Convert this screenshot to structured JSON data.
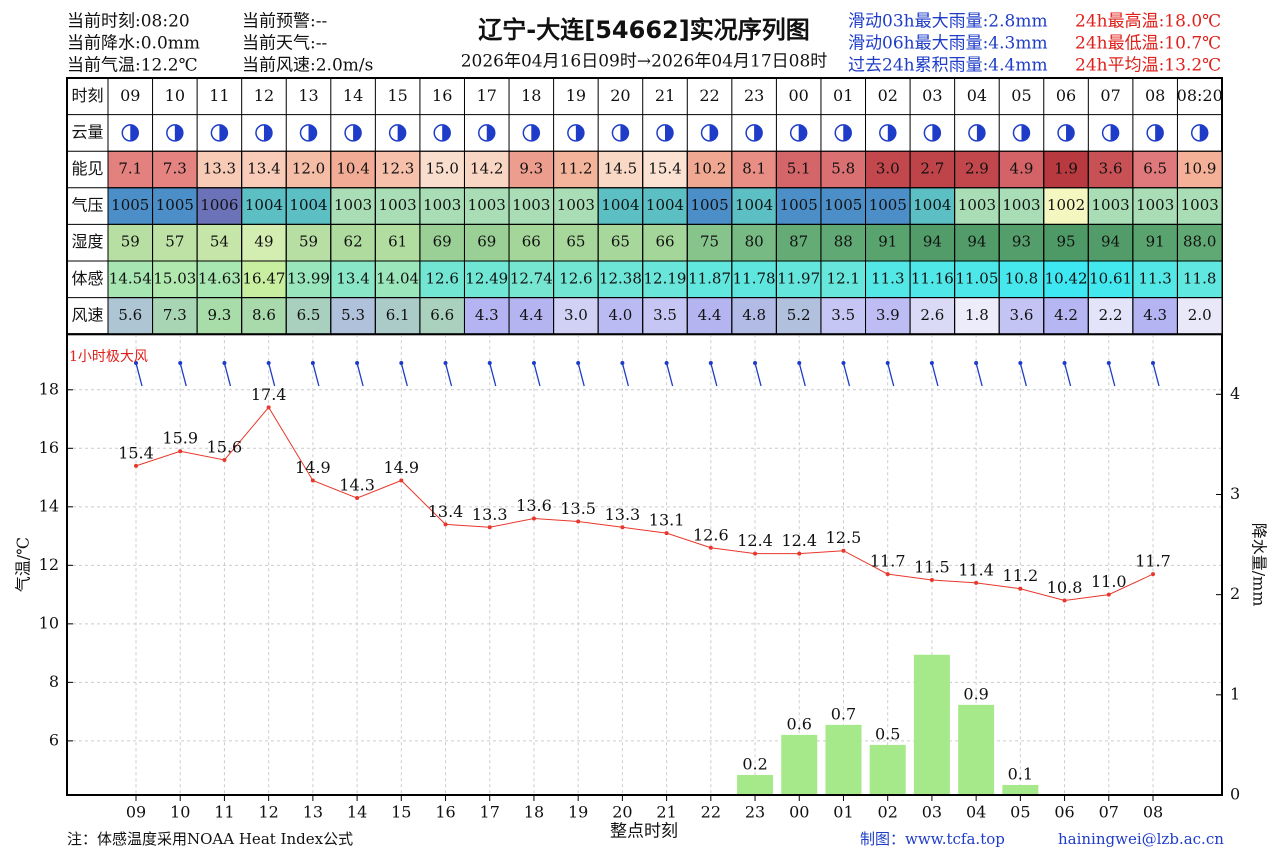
{
  "header": {
    "info_left": [
      "当前时刻:08:20",
      "当前降水:0.0mm",
      "当前气温:12.2℃"
    ],
    "info_mid": [
      "当前预警:--",
      "当前天气:--",
      "当前风速:2.0m/s"
    ],
    "title": "辽宁-大连[54662]实况序列图",
    "subtitle": "2026年04月16日09时→2026年04月17日08时",
    "rain_stats": [
      "滑动03h最大雨量:2.8mm",
      "滑动06h最大雨量:4.3mm",
      "过去24h累积雨量:4.4mm"
    ],
    "temp_stats": [
      "24h最高温:18.0℃",
      "24h最低温:10.7℃",
      "24h平均温:13.2℃"
    ]
  },
  "table": {
    "header_label": "时刻",
    "columns": [
      "09",
      "10",
      "11",
      "12",
      "13",
      "14",
      "15",
      "16",
      "17",
      "18",
      "19",
      "20",
      "21",
      "22",
      "23",
      "00",
      "01",
      "02",
      "03",
      "04",
      "05",
      "06",
      "07",
      "08",
      "08:20"
    ],
    "cloud_label": "云量",
    "rows": [
      {
        "label": "能见",
        "cells": [
          "7.1",
          "7.3",
          "13.3",
          "13.4",
          "12.0",
          "10.4",
          "12.3",
          "15.0",
          "14.2",
          "9.3",
          "11.2",
          "14.5",
          "15.4",
          "10.2",
          "8.1",
          "5.1",
          "5.8",
          "3.0",
          "2.7",
          "2.9",
          "4.9",
          "1.9",
          "3.6",
          "6.5",
          "10.9"
        ]
      },
      {
        "label": "气压",
        "cells": [
          "1005",
          "1005",
          "1006",
          "1004",
          "1004",
          "1003",
          "1003",
          "1003",
          "1003",
          "1003",
          "1003",
          "1004",
          "1004",
          "1005",
          "1004",
          "1005",
          "1005",
          "1005",
          "1004",
          "1003",
          "1003",
          "1002",
          "1003",
          "1003",
          "1003"
        ]
      },
      {
        "label": "湿度",
        "cells": [
          "59",
          "57",
          "54",
          "49",
          "59",
          "62",
          "61",
          "69",
          "69",
          "66",
          "65",
          "65",
          "66",
          "75",
          "80",
          "87",
          "88",
          "91",
          "94",
          "94",
          "93",
          "95",
          "94",
          "91",
          "88.0"
        ]
      },
      {
        "label": "体感",
        "cells": [
          "14.54",
          "15.03",
          "14.63",
          "16.47",
          "13.99",
          "13.4",
          "14.04",
          "12.6",
          "12.49",
          "12.74",
          "12.6",
          "12.38",
          "12.19",
          "11.87",
          "11.78",
          "11.97",
          "12.1",
          "11.3",
          "11.16",
          "11.05",
          "10.8",
          "10.42",
          "10.61",
          "11.3",
          "11.8"
        ]
      },
      {
        "label": "风速",
        "cells": [
          "5.6",
          "7.3",
          "9.3",
          "8.6",
          "6.5",
          "5.3",
          "6.1",
          "6.6",
          "4.3",
          "4.4",
          "3.0",
          "4.0",
          "3.5",
          "4.4",
          "4.8",
          "5.2",
          "3.5",
          "3.9",
          "2.6",
          "1.8",
          "3.6",
          "4.2",
          "2.2",
          "4.3",
          "2.0"
        ]
      }
    ]
  },
  "chart_data": {
    "type": "line",
    "categories": [
      "09",
      "10",
      "11",
      "12",
      "13",
      "14",
      "15",
      "16",
      "17",
      "18",
      "19",
      "20",
      "21",
      "22",
      "23",
      "00",
      "01",
      "02",
      "03",
      "04",
      "05",
      "06",
      "07",
      "08"
    ],
    "series": [
      {
        "type": "line",
        "color": "#e8372b",
        "values": [
          15.4,
          15.9,
          15.6,
          17.4,
          14.9,
          14.3,
          14.9,
          13.4,
          13.3,
          13.6,
          13.5,
          13.3,
          13.1,
          12.6,
          12.4,
          12.4,
          12.5,
          11.7,
          11.5,
          11.4,
          11.2,
          10.8,
          11.0,
          11.7
        ],
        "value_labels": [
          "15.4",
          "15.9",
          "15.6",
          "17.4",
          "14.9",
          "14.3",
          "14.9",
          "13.4",
          "13.3",
          "13.6",
          "13.5",
          "13.3",
          "13.1",
          "12.6",
          "12.4",
          "12.4",
          "12.5",
          "11.7",
          "11.5",
          "11.4",
          "11.2",
          "10.8",
          "11.0",
          "11.7"
        ]
      },
      {
        "type": "bar",
        "axis": "y2",
        "color": "#a6e98a",
        "values": [
          null,
          null,
          null,
          null,
          null,
          null,
          null,
          null,
          null,
          null,
          null,
          null,
          null,
          null,
          0.2,
          0.6,
          0.7,
          0.5,
          1.4,
          0.9,
          0.1,
          null,
          null,
          null
        ],
        "value_labels": [
          null,
          null,
          null,
          null,
          null,
          null,
          null,
          null,
          null,
          null,
          null,
          null,
          null,
          null,
          "0.2",
          "0.6",
          "0.7",
          "0.5",
          null,
          "0.9",
          "0.1",
          null,
          null,
          null
        ]
      }
    ],
    "ylim": [
      4.15,
      19.9
    ],
    "yticks": [
      6,
      8,
      10,
      12,
      14,
      16,
      18
    ],
    "y2lim": [
      0,
      4.6
    ],
    "y2ticks": [
      0,
      1,
      2,
      3,
      4
    ],
    "ylabel": "气温/℃",
    "y2label": "降水量/mm",
    "xlabel": "整点时刻",
    "annotation": "1小时极大风",
    "grid": true
  },
  "footer": {
    "note": "注：体感温度采用NOAA Heat Index公式",
    "credit": "制图：www.tcfa.top",
    "email": "hainingwei@lzb.ac.cn"
  }
}
